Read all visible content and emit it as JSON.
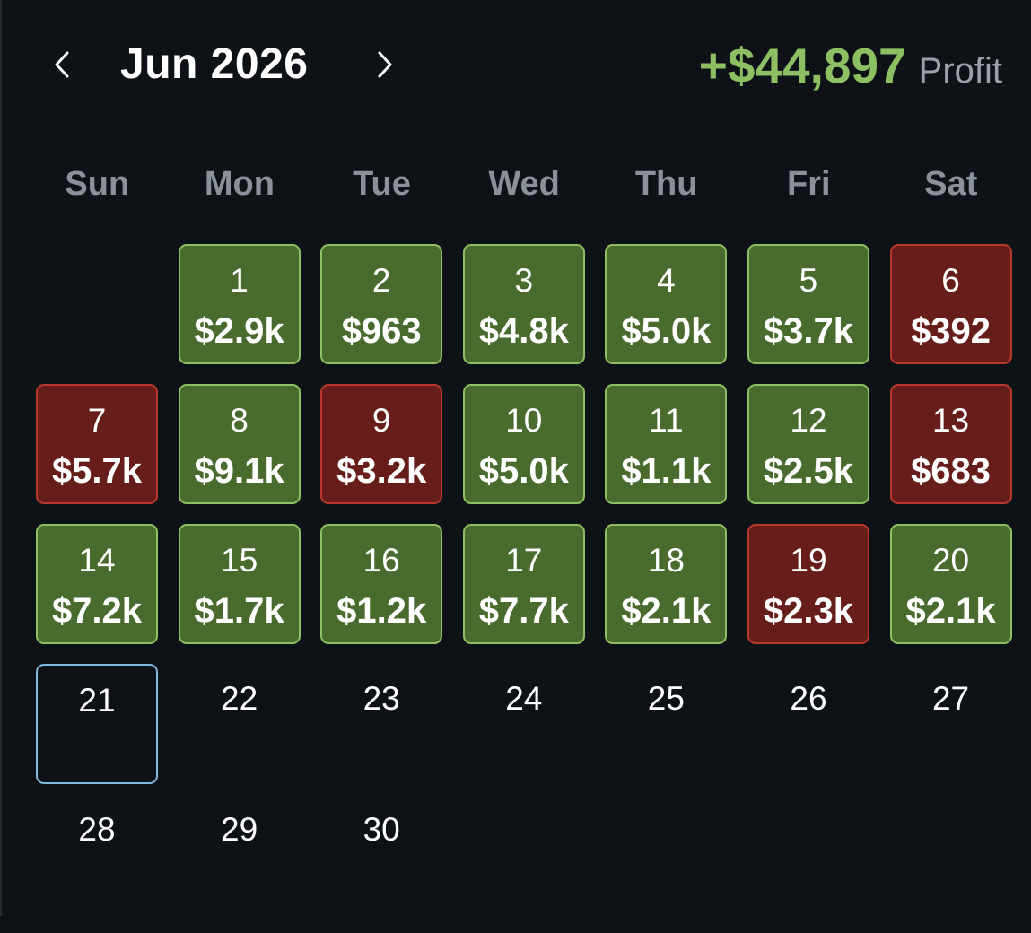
{
  "header": {
    "month_label": "Jun 2026",
    "profit_value": "+$44,897",
    "profit_label": "Profit",
    "prev_icon": "chevron-left-icon",
    "next_icon": "chevron-right-icon"
  },
  "weekdays": [
    "Sun",
    "Mon",
    "Tue",
    "Wed",
    "Thu",
    "Fri",
    "Sat"
  ],
  "colors": {
    "background": "#0e1217",
    "profit_text": "#8cc063",
    "win_fill": "#4a6b2e",
    "win_border": "#8cc063",
    "loss_fill": "#671d1a",
    "loss_border": "#b9382d",
    "today_border": "#7fb6de"
  },
  "days": [
    {
      "day": "1",
      "pnl": "$2.9k",
      "status": "win"
    },
    {
      "day": "2",
      "pnl": "$963",
      "status": "win"
    },
    {
      "day": "3",
      "pnl": "$4.8k",
      "status": "win"
    },
    {
      "day": "4",
      "pnl": "$5.0k",
      "status": "win"
    },
    {
      "day": "5",
      "pnl": "$3.7k",
      "status": "win"
    },
    {
      "day": "6",
      "pnl": "$392",
      "status": "loss"
    },
    {
      "day": "7",
      "pnl": "$5.7k",
      "status": "loss"
    },
    {
      "day": "8",
      "pnl": "$9.1k",
      "status": "win"
    },
    {
      "day": "9",
      "pnl": "$3.2k",
      "status": "loss"
    },
    {
      "day": "10",
      "pnl": "$5.0k",
      "status": "win"
    },
    {
      "day": "11",
      "pnl": "$1.1k",
      "status": "win"
    },
    {
      "day": "12",
      "pnl": "$2.5k",
      "status": "win"
    },
    {
      "day": "13",
      "pnl": "$683",
      "status": "loss"
    },
    {
      "day": "14",
      "pnl": "$7.2k",
      "status": "win"
    },
    {
      "day": "15",
      "pnl": "$1.7k",
      "status": "win"
    },
    {
      "day": "16",
      "pnl": "$1.2k",
      "status": "win"
    },
    {
      "day": "17",
      "pnl": "$7.7k",
      "status": "win"
    },
    {
      "day": "18",
      "pnl": "$2.1k",
      "status": "win"
    },
    {
      "day": "19",
      "pnl": "$2.3k",
      "status": "loss"
    },
    {
      "day": "20",
      "pnl": "$2.1k",
      "status": "win"
    },
    {
      "day": "21",
      "pnl": "",
      "status": "today"
    },
    {
      "day": "22",
      "pnl": "",
      "status": "none"
    },
    {
      "day": "23",
      "pnl": "",
      "status": "none"
    },
    {
      "day": "24",
      "pnl": "",
      "status": "none"
    },
    {
      "day": "25",
      "pnl": "",
      "status": "none"
    },
    {
      "day": "26",
      "pnl": "",
      "status": "none"
    },
    {
      "day": "27",
      "pnl": "",
      "status": "none"
    },
    {
      "day": "28",
      "pnl": "",
      "status": "none"
    },
    {
      "day": "29",
      "pnl": "",
      "status": "none"
    },
    {
      "day": "30",
      "pnl": "",
      "status": "none"
    }
  ]
}
